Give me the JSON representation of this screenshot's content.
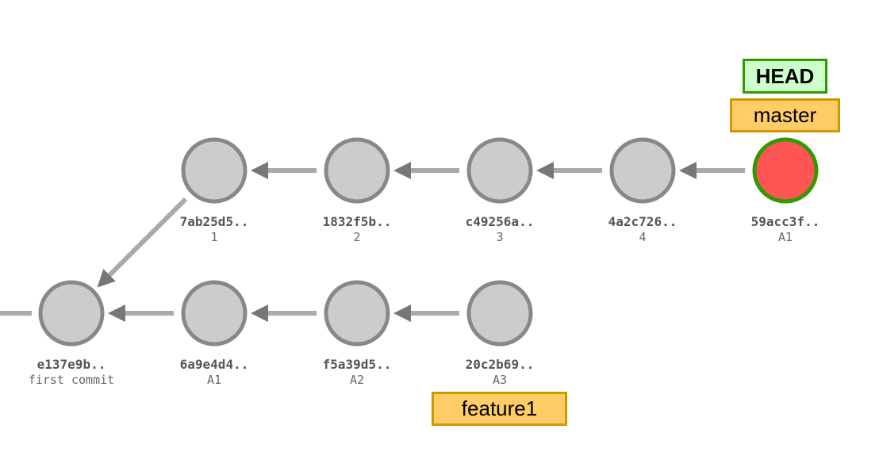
{
  "commits": [
    {
      "id": "e137e9b",
      "hash": "e137e9b..",
      "message": "first commit",
      "fill": "#cccccc",
      "stroke": "#888888"
    },
    {
      "id": "7ab25d5",
      "hash": "7ab25d5..",
      "message": "1",
      "fill": "#cccccc",
      "stroke": "#888888"
    },
    {
      "id": "1832f5b",
      "hash": "1832f5b..",
      "message": "2",
      "fill": "#cccccc",
      "stroke": "#888888"
    },
    {
      "id": "c49256a",
      "hash": "c49256a..",
      "message": "3",
      "fill": "#cccccc",
      "stroke": "#888888"
    },
    {
      "id": "4a2c726",
      "hash": "4a2c726..",
      "message": "4",
      "fill": "#cccccc",
      "stroke": "#888888"
    },
    {
      "id": "59acc3f",
      "hash": "59acc3f..",
      "message": "A1",
      "fill": "#ff5555",
      "stroke": "#339900"
    },
    {
      "id": "6a9e4d4",
      "hash": "6a9e4d4..",
      "message": "A1",
      "fill": "#cccccc",
      "stroke": "#888888"
    },
    {
      "id": "f5a39d5",
      "hash": "f5a39d5..",
      "message": "A2",
      "fill": "#cccccc",
      "stroke": "#888888"
    },
    {
      "id": "20c2b69",
      "hash": "20c2b69..",
      "message": "A3",
      "fill": "#cccccc",
      "stroke": "#888888"
    }
  ],
  "edges": [
    [
      "7ab25d5",
      "e137e9b"
    ],
    [
      "1832f5b",
      "7ab25d5"
    ],
    [
      "c49256a",
      "1832f5b"
    ],
    [
      "4a2c726",
      "c49256a"
    ],
    [
      "59acc3f",
      "4a2c726"
    ],
    [
      "6a9e4d4",
      "e137e9b"
    ],
    [
      "f5a39d5",
      "6a9e4d4"
    ],
    [
      "20c2b69",
      "f5a39d5"
    ]
  ],
  "refs": {
    "head": {
      "label": "HEAD",
      "target": "59acc3f"
    },
    "master": {
      "label": "master",
      "target": "59acc3f"
    },
    "feature1": {
      "label": "feature1",
      "target": "20c2b69"
    }
  },
  "colors": {
    "edge": "#aaaaaa",
    "arrowhead": "#777777",
    "node_default_fill": "#cccccc",
    "node_default_stroke": "#888888",
    "head_commit_fill": "#ff5555",
    "head_commit_stroke": "#339900",
    "branch_fill": "#ffcc66",
    "branch_border": "#cc9900",
    "head_ref_fill": "#ccffcc",
    "head_ref_border": "#339900"
  }
}
